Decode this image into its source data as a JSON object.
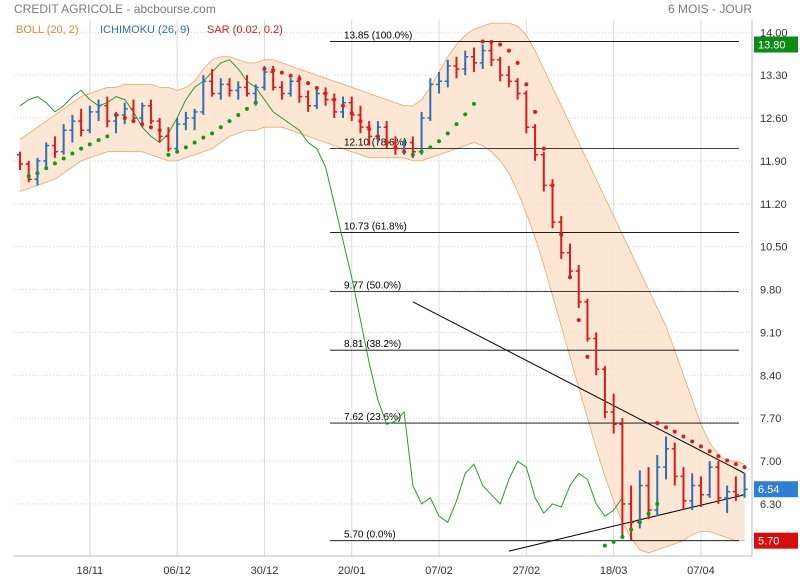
{
  "header": {
    "title": "CREDIT AGRICOLE - abcbourse.com",
    "period": "6 MOIS - JOUR"
  },
  "indicators": [
    {
      "label": "BOLL (20, 2)",
      "color": "#e08a3c"
    },
    {
      "label": "ICHIMOKU (26, 9)",
      "color": "#2c6fb5"
    },
    {
      "label": "SAR (0.02, 0.2)",
      "color": "#d81c1c"
    }
  ],
  "colors": {
    "up_bar": "#2c6fb5",
    "down_bar": "#d81c1c",
    "sar_below": "#139a13",
    "sar_above": "#d81c1c",
    "bollinger_fill": "#fbe3cc",
    "bollinger_edge": "#e9a66a",
    "ichimoku_lagging": "#2a9a2a",
    "trendline": "#000000",
    "fib_line": "#000000",
    "tag_green": "#0e8a16",
    "tag_blue": "#2f7fd6",
    "tag_red": "#d40e0e"
  },
  "chart_data": {
    "type": "ohlc",
    "title": "CREDIT AGRICOLE",
    "ylim": [
      5.45,
      14.2
    ],
    "y_ticks": [
      "14.00",
      "13.30",
      "12.60",
      "11.90",
      "11.20",
      "10.50",
      "9.80",
      "9.10",
      "8.40",
      "7.70",
      "7.00",
      "6.30"
    ],
    "y_tick_values": [
      14.0,
      13.3,
      12.6,
      11.9,
      11.2,
      10.5,
      9.8,
      9.1,
      8.4,
      7.7,
      7.0,
      6.3
    ],
    "x_ticks": [
      {
        "label": "18/11",
        "index": 8
      },
      {
        "label": "06/12",
        "index": 18
      },
      {
        "label": "30/12",
        "index": 28
      },
      {
        "label": "20/01",
        "index": 38
      },
      {
        "label": "07/02",
        "index": 48
      },
      {
        "label": "27/02",
        "index": 58
      },
      {
        "label": "18/03",
        "index": 68
      },
      {
        "label": "07/04",
        "index": 78
      }
    ],
    "fibonacci": [
      {
        "level": 13.85,
        "label": "13.85  (100.0%)"
      },
      {
        "level": 12.1,
        "label": "12.10  (78.6%)"
      },
      {
        "level": 10.73,
        "label": "10.73  (61.8%)"
      },
      {
        "level": 9.77,
        "label": "9.77  (50.0%)"
      },
      {
        "level": 8.81,
        "label": "8.81  (38.2%)"
      },
      {
        "level": 7.62,
        "label": "7.62  (23.6%)"
      },
      {
        "level": 5.7,
        "label": "5.70  (0.0%)"
      }
    ],
    "value_tags": [
      {
        "value": "13.80",
        "y": 13.8,
        "kind": "green"
      },
      {
        "value": "6.54",
        "y": 6.54,
        "kind": "blue"
      },
      {
        "value": "5.70",
        "y": 5.7,
        "kind": "red"
      }
    ],
    "trendlines": [
      {
        "from": [
          45,
          9.6
        ],
        "to": [
          83,
          6.8
        ]
      },
      {
        "from": [
          56,
          5.53
        ],
        "to": [
          83,
          6.45
        ]
      }
    ],
    "ohlc": [
      [
        12.0,
        12.05,
        11.75,
        11.85
      ],
      [
        11.85,
        11.9,
        11.55,
        11.6
      ],
      [
        11.6,
        11.95,
        11.5,
        11.9
      ],
      [
        11.9,
        12.2,
        11.8,
        12.15
      ],
      [
        12.15,
        12.3,
        11.95,
        12.05
      ],
      [
        12.05,
        12.5,
        12.0,
        12.4
      ],
      [
        12.4,
        12.65,
        12.2,
        12.55
      ],
      [
        12.55,
        12.75,
        12.3,
        12.4
      ],
      [
        12.4,
        12.8,
        12.35,
        12.7
      ],
      [
        12.7,
        12.9,
        12.55,
        12.8
      ],
      [
        12.8,
        12.95,
        12.45,
        12.55
      ],
      [
        12.55,
        12.7,
        12.35,
        12.65
      ],
      [
        12.65,
        12.85,
        12.5,
        12.75
      ],
      [
        12.75,
        12.9,
        12.55,
        12.6
      ],
      [
        12.6,
        12.85,
        12.45,
        12.8
      ],
      [
        12.8,
        12.9,
        12.5,
        12.55
      ],
      [
        12.55,
        12.6,
        12.2,
        12.3
      ],
      [
        12.3,
        12.45,
        12.05,
        12.1
      ],
      [
        12.1,
        12.6,
        12.05,
        12.5
      ],
      [
        12.5,
        12.7,
        12.4,
        12.6
      ],
      [
        12.6,
        12.75,
        12.4,
        12.7
      ],
      [
        12.7,
        13.3,
        12.65,
        13.2
      ],
      [
        13.2,
        13.4,
        12.95,
        13.0
      ],
      [
        13.0,
        13.25,
        12.9,
        13.15
      ],
      [
        13.15,
        13.25,
        12.95,
        13.05
      ],
      [
        13.05,
        13.2,
        12.9,
        13.1
      ],
      [
        13.1,
        13.3,
        12.95,
        13.0
      ],
      [
        13.0,
        13.15,
        12.8,
        13.1
      ],
      [
        13.1,
        13.45,
        13.05,
        13.35
      ],
      [
        13.35,
        13.45,
        13.05,
        13.1
      ],
      [
        13.1,
        13.2,
        12.9,
        13.0
      ],
      [
        13.0,
        13.25,
        12.95,
        13.2
      ],
      [
        13.2,
        13.3,
        12.85,
        12.95
      ],
      [
        12.95,
        13.05,
        12.7,
        12.8
      ],
      [
        12.8,
        13.1,
        12.75,
        13.0
      ],
      [
        13.0,
        13.1,
        12.8,
        12.9
      ],
      [
        12.9,
        13.0,
        12.6,
        12.7
      ],
      [
        12.7,
        12.95,
        12.6,
        12.85
      ],
      [
        12.85,
        12.95,
        12.55,
        12.65
      ],
      [
        12.65,
        12.8,
        12.35,
        12.45
      ],
      [
        12.45,
        12.55,
        12.15,
        12.3
      ],
      [
        12.3,
        12.55,
        12.2,
        12.45
      ],
      [
        12.45,
        12.55,
        12.1,
        12.2
      ],
      [
        12.2,
        12.3,
        12.0,
        12.1
      ],
      [
        12.1,
        12.25,
        12.0,
        12.2
      ],
      [
        12.2,
        12.3,
        11.95,
        12.05
      ],
      [
        12.05,
        12.7,
        12.0,
        12.6
      ],
      [
        12.6,
        13.25,
        12.55,
        13.15
      ],
      [
        13.15,
        13.35,
        13.0,
        13.2
      ],
      [
        13.2,
        13.55,
        13.1,
        13.45
      ],
      [
        13.45,
        13.6,
        13.25,
        13.4
      ],
      [
        13.4,
        13.7,
        13.3,
        13.6
      ],
      [
        13.6,
        13.75,
        13.35,
        13.5
      ],
      [
        13.5,
        13.8,
        13.4,
        13.7
      ],
      [
        13.7,
        13.85,
        13.45,
        13.55
      ],
      [
        13.55,
        13.6,
        13.2,
        13.3
      ],
      [
        13.3,
        13.45,
        13.1,
        13.2
      ],
      [
        13.2,
        13.25,
        12.9,
        13.0
      ],
      [
        13.0,
        13.05,
        12.35,
        12.45
      ],
      [
        12.45,
        12.5,
        11.9,
        12.0
      ],
      [
        12.0,
        12.05,
        11.4,
        11.5
      ],
      [
        11.5,
        11.6,
        10.8,
        10.9
      ],
      [
        10.9,
        11.0,
        10.3,
        10.4
      ],
      [
        10.4,
        10.55,
        10.0,
        10.1
      ],
      [
        10.1,
        10.2,
        9.5,
        9.6
      ],
      [
        9.6,
        9.65,
        8.95,
        9.0
      ],
      [
        9.0,
        9.1,
        8.4,
        8.5
      ],
      [
        8.5,
        8.55,
        7.7,
        7.8
      ],
      [
        7.8,
        8.1,
        7.45,
        7.6
      ],
      [
        7.6,
        7.7,
        5.75,
        6.3
      ],
      [
        6.3,
        6.6,
        5.7,
        6.0
      ],
      [
        6.0,
        6.85,
        5.9,
        6.6
      ],
      [
        6.6,
        6.9,
        6.05,
        6.2
      ],
      [
        6.2,
        7.1,
        6.1,
        6.9
      ],
      [
        6.9,
        7.4,
        6.7,
        7.2
      ],
      [
        7.2,
        7.3,
        6.6,
        6.75
      ],
      [
        6.75,
        6.9,
        6.2,
        6.35
      ],
      [
        6.35,
        6.8,
        6.2,
        6.6
      ],
      [
        6.6,
        6.75,
        6.25,
        6.45
      ],
      [
        6.45,
        7.0,
        6.4,
        6.9
      ],
      [
        6.9,
        7.0,
        6.3,
        6.4
      ],
      [
        6.4,
        6.6,
        6.15,
        6.5
      ],
      [
        6.5,
        6.75,
        6.35,
        6.45
      ],
      [
        6.45,
        6.8,
        6.4,
        6.54
      ]
    ],
    "boll_upper": [
      12.25,
      12.35,
      12.45,
      12.55,
      12.65,
      12.75,
      12.85,
      12.95,
      13.0,
      13.05,
      13.1,
      13.1,
      13.15,
      13.15,
      13.15,
      13.15,
      13.1,
      13.1,
      13.05,
      13.1,
      13.2,
      13.4,
      13.55,
      13.6,
      13.6,
      13.55,
      13.5,
      13.5,
      13.55,
      13.55,
      13.5,
      13.45,
      13.4,
      13.35,
      13.3,
      13.25,
      13.2,
      13.15,
      13.1,
      13.05,
      13.0,
      12.95,
      12.9,
      12.85,
      12.8,
      12.8,
      12.9,
      13.1,
      13.35,
      13.6,
      13.8,
      13.95,
      14.05,
      14.1,
      14.15,
      14.15,
      14.15,
      14.1,
      13.95,
      13.7,
      13.4,
      13.1,
      12.8,
      12.5,
      12.2,
      11.9,
      11.6,
      11.3,
      11.0,
      10.7,
      10.4,
      10.1,
      9.8,
      9.5,
      9.2,
      8.8,
      8.4,
      8.0,
      7.6,
      7.3,
      7.1,
      7.0,
      7.0,
      6.95
    ],
    "boll_lower": [
      11.4,
      11.45,
      11.5,
      11.55,
      11.6,
      11.7,
      11.8,
      11.9,
      11.95,
      12.0,
      12.05,
      12.05,
      12.05,
      12.05,
      12.05,
      12.0,
      11.95,
      11.9,
      11.9,
      11.95,
      12.0,
      12.05,
      12.1,
      12.2,
      12.3,
      12.35,
      12.4,
      12.4,
      12.45,
      12.45,
      12.45,
      12.4,
      12.35,
      12.3,
      12.25,
      12.2,
      12.15,
      12.1,
      12.05,
      12.0,
      11.95,
      11.95,
      11.95,
      11.95,
      11.95,
      11.9,
      11.9,
      11.95,
      12.0,
      12.05,
      12.1,
      12.15,
      12.2,
      12.15,
      12.05,
      11.9,
      11.7,
      11.4,
      11.05,
      10.65,
      10.2,
      9.7,
      9.2,
      8.7,
      8.2,
      7.7,
      7.2,
      6.75,
      6.35,
      6.0,
      5.75,
      5.55,
      5.5,
      5.55,
      5.6,
      5.65,
      5.7,
      5.8,
      5.85,
      5.85,
      5.8,
      5.75,
      5.7,
      5.7
    ],
    "lagging_line": [
      12.8,
      12.9,
      12.95,
      12.85,
      12.7,
      12.8,
      12.95,
      13.05,
      12.9,
      12.8,
      12.85,
      12.95,
      12.9,
      12.7,
      12.45,
      12.3,
      12.2,
      12.35,
      12.6,
      12.9,
      13.1,
      13.2,
      13.35,
      13.5,
      13.55,
      13.4,
      13.2,
      13.1,
      12.9,
      12.7,
      12.6,
      12.5,
      12.4,
      12.2,
      12.1,
      11.8,
      11.2,
      10.6,
      10.0,
      9.3,
      8.6,
      8.0,
      7.6,
      7.65,
      7.8,
      6.6,
      6.3,
      6.4,
      6.1,
      6.0,
      6.35,
      6.8,
      6.95,
      6.6,
      6.45,
      6.3,
      6.7,
      7.0,
      6.9,
      6.4,
      6.15,
      6.3,
      6.25,
      6.6,
      6.8,
      6.7,
      6.3,
      6.1,
      6.2,
      6.4
    ],
    "sar_up": [
      [
        1,
        11.65
      ],
      [
        2,
        11.7
      ],
      [
        3,
        11.78
      ],
      [
        4,
        11.86
      ],
      [
        5,
        11.94
      ],
      [
        6,
        12.02
      ],
      [
        7,
        12.1
      ],
      [
        8,
        12.17
      ],
      [
        9,
        12.24
      ],
      [
        10,
        12.3
      ],
      [
        17,
        12.0
      ],
      [
        18,
        12.05
      ],
      [
        19,
        12.12
      ],
      [
        20,
        12.2
      ],
      [
        21,
        12.28
      ],
      [
        22,
        12.35
      ],
      [
        23,
        12.45
      ],
      [
        24,
        12.55
      ],
      [
        25,
        12.65
      ],
      [
        26,
        12.75
      ],
      [
        27,
        12.85
      ],
      [
        45,
        12.0
      ],
      [
        46,
        12.05
      ],
      [
        47,
        12.12
      ],
      [
        48,
        12.22
      ],
      [
        49,
        12.35
      ],
      [
        50,
        12.5
      ],
      [
        51,
        12.66
      ],
      [
        52,
        12.83
      ],
      [
        67,
        5.62
      ],
      [
        68,
        5.68
      ],
      [
        69,
        5.76
      ],
      [
        70,
        5.88
      ],
      [
        71,
        6.0
      ],
      [
        72,
        6.14
      ],
      [
        73,
        6.3
      ]
    ],
    "sar_down": [
      [
        11,
        12.65
      ],
      [
        12,
        12.6
      ],
      [
        13,
        12.55
      ],
      [
        14,
        12.5
      ],
      [
        15,
        12.45
      ],
      [
        16,
        12.4
      ],
      [
        28,
        13.4
      ],
      [
        29,
        13.38
      ],
      [
        30,
        13.34
      ],
      [
        31,
        13.29
      ],
      [
        32,
        13.24
      ],
      [
        33,
        13.17
      ],
      [
        34,
        13.09
      ],
      [
        35,
        13.0
      ],
      [
        36,
        12.9
      ],
      [
        37,
        12.8
      ],
      [
        38,
        12.68
      ],
      [
        39,
        12.55
      ],
      [
        40,
        12.42
      ],
      [
        41,
        12.3
      ],
      [
        42,
        12.2
      ],
      [
        43,
        12.12
      ],
      [
        44,
        12.05
      ],
      [
        53,
        13.85
      ],
      [
        54,
        13.84
      ],
      [
        55,
        13.8
      ],
      [
        56,
        13.7
      ],
      [
        57,
        13.5
      ],
      [
        58,
        13.15
      ],
      [
        59,
        12.7
      ],
      [
        60,
        12.1
      ],
      [
        61,
        11.5
      ],
      [
        62,
        10.7
      ],
      [
        63,
        10.0
      ],
      [
        64,
        9.3
      ],
      [
        65,
        8.7
      ],
      [
        73,
        7.62
      ],
      [
        74,
        7.55
      ],
      [
        75,
        7.48
      ],
      [
        76,
        7.4
      ],
      [
        77,
        7.32
      ],
      [
        78,
        7.24
      ],
      [
        79,
        7.16
      ],
      [
        80,
        7.08
      ],
      [
        81,
        7.01
      ],
      [
        82,
        6.95
      ],
      [
        83,
        6.9
      ]
    ]
  }
}
